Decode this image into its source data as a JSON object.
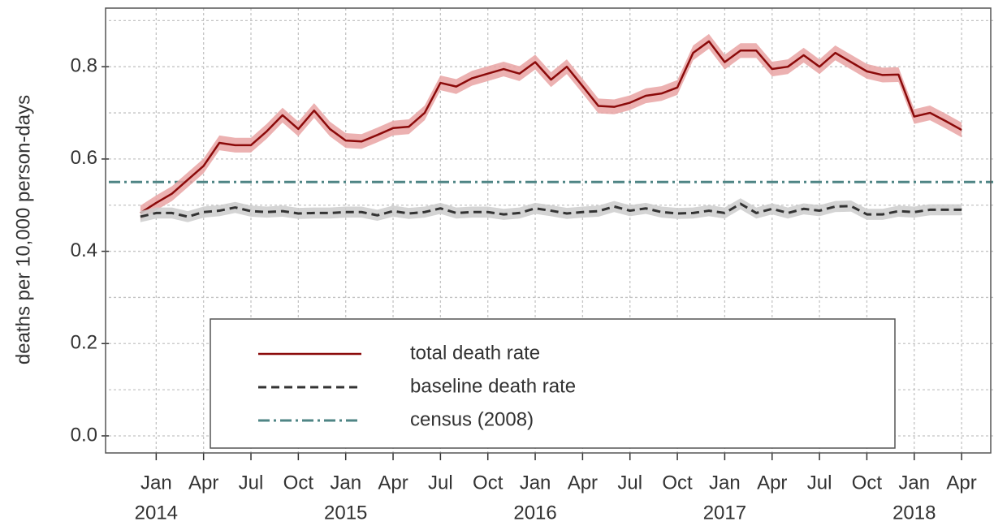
{
  "chart_data": {
    "type": "line",
    "y_label": "deaths per 10,000 person-days",
    "x": [
      "2013-12",
      "2014-01",
      "2014-02",
      "2014-03",
      "2014-04",
      "2014-05",
      "2014-06",
      "2014-07",
      "2014-08",
      "2014-09",
      "2014-10",
      "2014-11",
      "2014-12",
      "2015-01",
      "2015-02",
      "2015-03",
      "2015-04",
      "2015-05",
      "2015-06",
      "2015-07",
      "2015-08",
      "2015-09",
      "2015-10",
      "2015-11",
      "2015-12",
      "2016-01",
      "2016-02",
      "2016-03",
      "2016-04",
      "2016-05",
      "2016-06",
      "2016-07",
      "2016-08",
      "2016-09",
      "2016-10",
      "2016-11",
      "2016-12",
      "2017-01",
      "2017-02",
      "2017-03",
      "2017-04",
      "2017-05",
      "2017-06",
      "2017-07",
      "2017-08",
      "2017-09",
      "2017-10",
      "2017-11",
      "2017-12",
      "2018-01",
      "2018-02",
      "2018-03",
      "2018-04"
    ],
    "series": [
      {
        "name": "total death rate",
        "color": "#8b0a0a",
        "band_color": "#e9a3a3",
        "style": "solid",
        "ci_halfwidth": 0.016,
        "values": [
          0.483,
          0.505,
          0.525,
          0.555,
          0.585,
          0.635,
          0.63,
          0.63,
          0.66,
          0.695,
          0.665,
          0.705,
          0.665,
          0.64,
          0.638,
          0.652,
          0.667,
          0.67,
          0.7,
          0.765,
          0.757,
          0.775,
          0.785,
          0.795,
          0.785,
          0.81,
          0.772,
          0.8,
          0.758,
          0.715,
          0.713,
          0.722,
          0.737,
          0.742,
          0.755,
          0.83,
          0.855,
          0.81,
          0.835,
          0.835,
          0.795,
          0.8,
          0.825,
          0.8,
          0.83,
          0.81,
          0.79,
          0.782,
          0.783,
          0.692,
          0.7,
          0.682,
          0.663
        ]
      },
      {
        "name": "baseline death rate",
        "color": "#333333",
        "band_color": "#cccccc",
        "style": "dashed",
        "ci_halfwidth": 0.012,
        "values": [
          0.475,
          0.483,
          0.483,
          0.475,
          0.485,
          0.488,
          0.495,
          0.487,
          0.485,
          0.487,
          0.482,
          0.483,
          0.483,
          0.485,
          0.485,
          0.478,
          0.487,
          0.482,
          0.485,
          0.493,
          0.483,
          0.485,
          0.485,
          0.48,
          0.483,
          0.493,
          0.488,
          0.482,
          0.485,
          0.487,
          0.497,
          0.488,
          0.493,
          0.485,
          0.482,
          0.483,
          0.488,
          0.483,
          0.503,
          0.483,
          0.492,
          0.483,
          0.492,
          0.488,
          0.497,
          0.498,
          0.48,
          0.48,
          0.487,
          0.485,
          0.49,
          0.49,
          0.49
        ]
      }
    ],
    "reference_lines": [
      {
        "name": "census (2008)",
        "value": 0.55,
        "color": "#4f8585",
        "style": "dashdot"
      }
    ],
    "xlim": [
      "2013-10",
      "2018-06"
    ],
    "xticks": [
      {
        "value": "2014-01",
        "label": "Jan"
      },
      {
        "value": "2014-04",
        "label": "Apr"
      },
      {
        "value": "2014-07",
        "label": "Jul"
      },
      {
        "value": "2014-10",
        "label": "Oct"
      },
      {
        "value": "2015-01",
        "label": "Jan"
      },
      {
        "value": "2015-04",
        "label": "Apr"
      },
      {
        "value": "2015-07",
        "label": "Jul"
      },
      {
        "value": "2015-10",
        "label": "Oct"
      },
      {
        "value": "2016-01",
        "label": "Jan"
      },
      {
        "value": "2016-04",
        "label": "Apr"
      },
      {
        "value": "2016-07",
        "label": "Jul"
      },
      {
        "value": "2016-10",
        "label": "Oct"
      },
      {
        "value": "2017-01",
        "label": "Jan"
      },
      {
        "value": "2017-04",
        "label": "Apr"
      },
      {
        "value": "2017-07",
        "label": "Jul"
      },
      {
        "value": "2017-10",
        "label": "Oct"
      },
      {
        "value": "2018-01",
        "label": "Jan"
      },
      {
        "value": "2018-04",
        "label": "Apr"
      }
    ],
    "year_labels": [
      {
        "value": "2014-01",
        "label": "2014"
      },
      {
        "value": "2015-01",
        "label": "2015"
      },
      {
        "value": "2016-01",
        "label": "2016"
      },
      {
        "value": "2017-01",
        "label": "2017"
      },
      {
        "value": "2018-01",
        "label": "2018"
      }
    ],
    "ylim": [
      -0.037,
      0.927
    ],
    "yticks": [
      {
        "value": 0,
        "label": "0.0"
      },
      0.2,
      0.4,
      0.6,
      0.8
    ],
    "minor_yticks": [
      0.1,
      0.3,
      0.5,
      0.7,
      0.9
    ],
    "grid": true
  }
}
